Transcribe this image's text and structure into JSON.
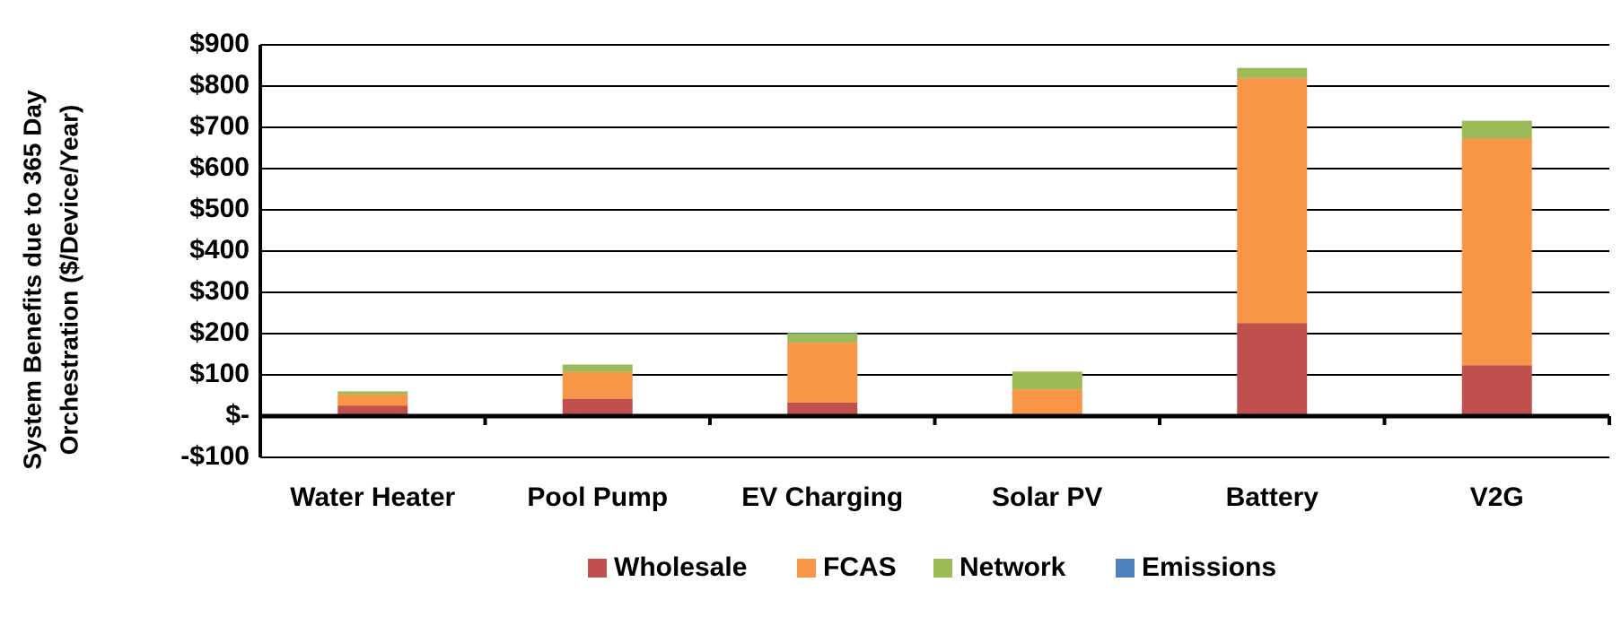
{
  "chart_data": {
    "type": "bar",
    "stacked": true,
    "title": "",
    "xlabel": "",
    "ylabel": "System Benefits due to 365 Day Orchestration ($/Device/Year)",
    "ylabel_lines": [
      "System Benefits due to 365 Day",
      "Orchestration ($/Device/Year)"
    ],
    "ylim": [
      -100,
      900
    ],
    "yticks": [
      900,
      800,
      700,
      600,
      500,
      400,
      300,
      200,
      100,
      0,
      -100
    ],
    "ytick_labels": [
      "$900",
      "$800",
      "$700",
      "$600",
      "$500",
      "$400",
      "$300",
      "$200",
      "$100",
      "$-",
      "-$100"
    ],
    "grid": true,
    "legend_position": "bottom",
    "categories": [
      "Water Heater",
      "Pool Pump",
      "EV Charging",
      "Solar PV",
      "Battery",
      "V2G"
    ],
    "series": [
      {
        "name": "Wholesale",
        "color": "#C0504D",
        "values": [
          25,
          42,
          33,
          0,
          225,
          123
        ]
      },
      {
        "name": "FCAS",
        "color": "#F79646",
        "values": [
          28,
          65,
          145,
          65,
          595,
          550
        ]
      },
      {
        "name": "Network",
        "color": "#9BBB59",
        "values": [
          7,
          18,
          22,
          43,
          24,
          43
        ]
      },
      {
        "name": "Emissions",
        "color": "#4F81BD",
        "values": [
          0,
          0,
          2,
          0,
          0,
          0
        ]
      }
    ]
  }
}
